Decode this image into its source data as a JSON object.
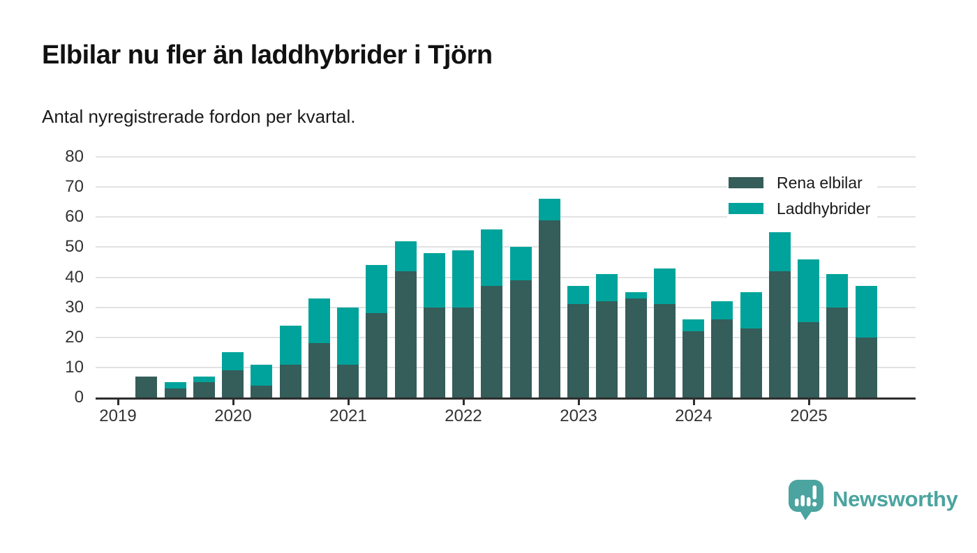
{
  "title": "Elbilar nu fler än laddhybrider i Tjörn",
  "subtitle": "Antal nyregistrerade fordon per kvartal.",
  "legend": {
    "series1": "Rena elbilar",
    "series2": "Laddhybrider"
  },
  "branding": {
    "name": "Newsworthy"
  },
  "colors": {
    "rena_elbilar": "#355d59",
    "laddhybrider": "#00a39b",
    "brand_teal": "#4ba49f",
    "gridline": "#e2e2e2",
    "axis": "#2e2e2e",
    "text": "#1a1a1a",
    "axis_label": "#333333"
  },
  "chart_data": {
    "type": "bar",
    "stacked": true,
    "title": "Elbilar nu fler än laddhybrider i Tjörn",
    "subtitle": "Antal nyregistrerade fordon per kvartal.",
    "categories": [
      "2019 Q1",
      "2019 Q2",
      "2019 Q3",
      "2019 Q4",
      "2020 Q1",
      "2020 Q2",
      "2020 Q3",
      "2020 Q4",
      "2021 Q1",
      "2021 Q2",
      "2021 Q3",
      "2021 Q4",
      "2022 Q1",
      "2022 Q2",
      "2022 Q3",
      "2022 Q4",
      "2023 Q1",
      "2023 Q2",
      "2023 Q3",
      "2023 Q4",
      "2024 Q1",
      "2024 Q2",
      "2024 Q3",
      "2024 Q4",
      "2025 Q1",
      "2025 Q2",
      "2025 Q3"
    ],
    "series": [
      {
        "name": "Rena elbilar",
        "color": "#355d59",
        "values": [
          0,
          7,
          3,
          5,
          9,
          4,
          11,
          18,
          11,
          28,
          42,
          30,
          30,
          37,
          39,
          59,
          31,
          32,
          33,
          31,
          22,
          26,
          23,
          42,
          25,
          30,
          20
        ]
      },
      {
        "name": "Laddhybrider",
        "color": "#00a39b",
        "values": [
          0,
          0,
          2,
          2,
          6,
          7,
          13,
          15,
          19,
          16,
          10,
          18,
          19,
          19,
          11,
          7,
          6,
          9,
          2,
          12,
          4,
          6,
          12,
          13,
          21,
          11,
          17
        ]
      }
    ],
    "totals": [
      0,
      7,
      5,
      7,
      15,
      11,
      24,
      33,
      30,
      44,
      52,
      48,
      49,
      56,
      50,
      66,
      37,
      41,
      35,
      43,
      26,
      32,
      35,
      55,
      46,
      41,
      37
    ],
    "x_tick_labels": [
      "2019",
      "2020",
      "2021",
      "2022",
      "2023",
      "2024",
      "2025"
    ],
    "y_ticks": [
      0,
      10,
      20,
      30,
      40,
      50,
      60,
      70,
      80
    ],
    "ylim": [
      0,
      80
    ],
    "grid": "horizontal",
    "legend_position": "top-right"
  }
}
